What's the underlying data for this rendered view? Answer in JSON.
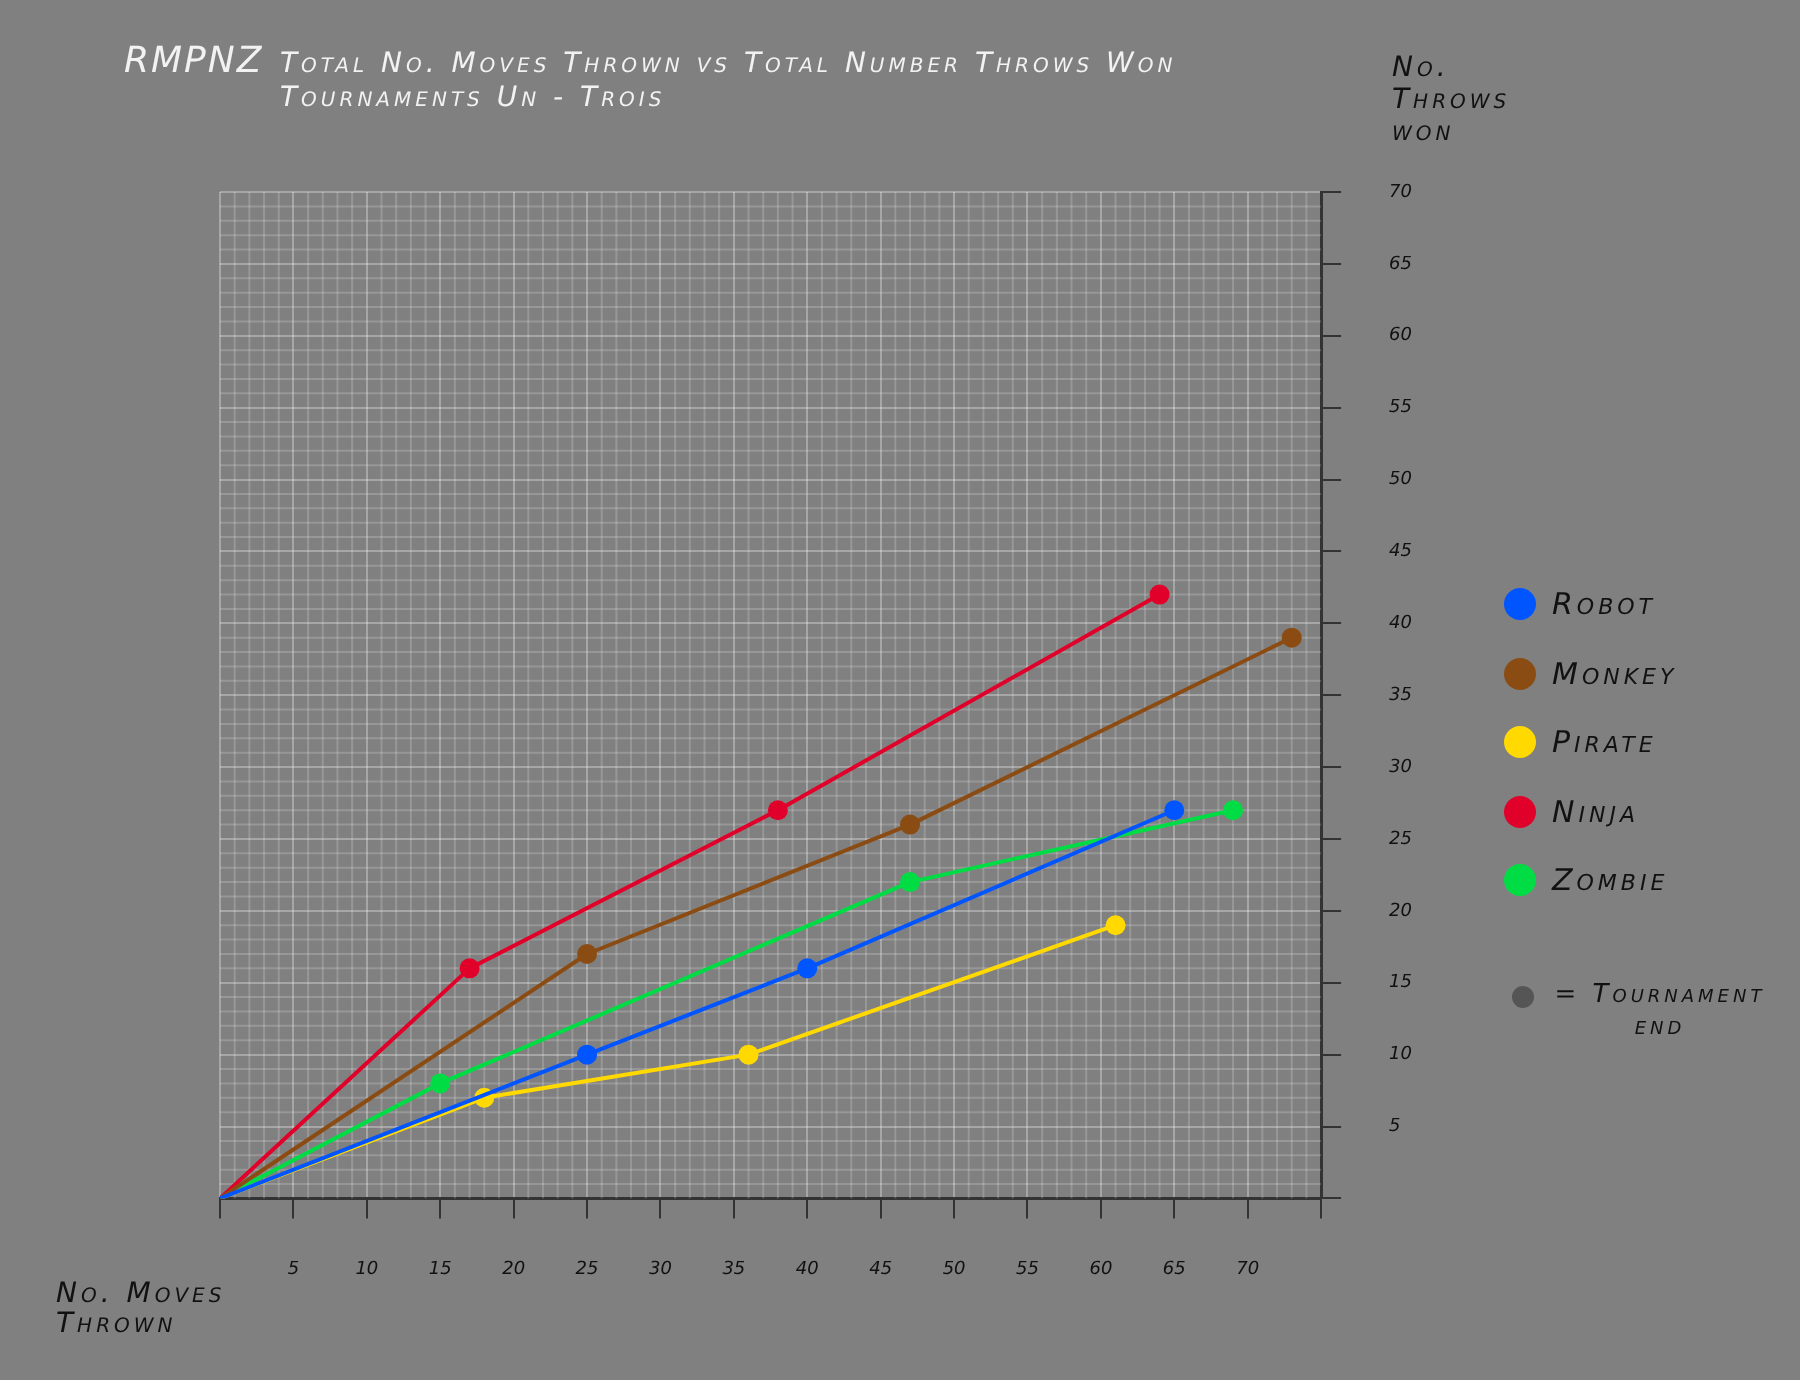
{
  "chart_data": {
    "type": "line",
    "title": "RMPNZ",
    "subtitle": "Total No. Moves Thrown vs Total Number Throws Won\nTournaments Un - Trois",
    "xlabel": "No. Moves Thrown",
    "ylabel": "No. Throws won",
    "xlim": [
      0,
      75
    ],
    "xticks": [
      {
        "value": 0,
        "label": null
      },
      5,
      10,
      15,
      20,
      25,
      30,
      35,
      40,
      45,
      50,
      55,
      60,
      65,
      70,
      {
        "value": 75,
        "label": null
      }
    ],
    "ylim": [
      0,
      70
    ],
    "yticks": [
      {
        "value": 0,
        "label": null
      },
      5,
      10,
      15,
      20,
      25,
      30,
      35,
      40,
      45,
      50,
      55,
      60,
      65,
      70
    ],
    "grid": true,
    "legend": "right",
    "marker": "circle",
    "line_style": "solid",
    "series": [
      {
        "name": "Robot",
        "color": "#0055ff",
        "x": [
          0,
          25,
          40,
          65
        ],
        "values": [
          0,
          10,
          16,
          27
        ]
      },
      {
        "name": "Monkey",
        "color": "#8b4c14",
        "x": [
          0,
          25,
          47,
          73
        ],
        "values": [
          0,
          17,
          26,
          39
        ]
      },
      {
        "name": "Pirate",
        "color": "#ffd900",
        "x": [
          0,
          18,
          36,
          61
        ],
        "values": [
          0,
          7,
          10,
          19
        ]
      },
      {
        "name": "Ninja",
        "color": "#e0002a",
        "x": [
          0,
          17,
          38,
          64
        ],
        "values": [
          0,
          16,
          27,
          42
        ]
      },
      {
        "name": "Zombie",
        "color": "#00dd44",
        "x": [
          0,
          15,
          47,
          69
        ],
        "values": [
          0,
          8,
          22,
          27
        ]
      }
    ],
    "annotations": [
      "= Tournament end"
    ]
  }
}
